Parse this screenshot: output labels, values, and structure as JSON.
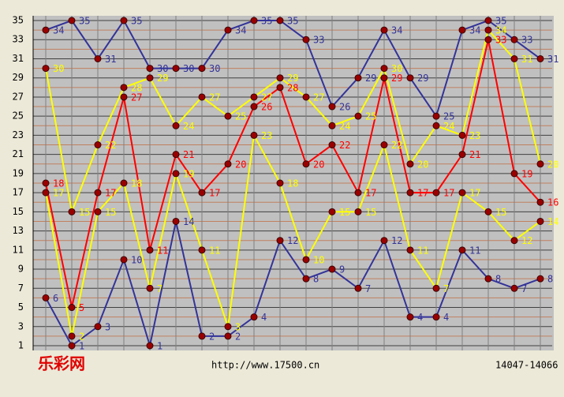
{
  "chart_data": {
    "type": "line",
    "logo": "乐彩网",
    "url": "http://www.17500.cn",
    "period": "14047-14066",
    "ylim": [
      1,
      35
    ],
    "yticks": [
      1,
      3,
      5,
      7,
      9,
      11,
      13,
      15,
      17,
      19,
      21,
      23,
      25,
      27,
      29,
      31,
      33,
      35
    ],
    "minor_yticks": [
      2,
      4,
      6,
      8,
      10,
      12,
      14,
      16,
      18,
      20,
      22,
      24,
      26,
      28,
      30,
      32,
      34
    ],
    "grid": true,
    "series": [
      {
        "color": "#333399",
        "values": [
          34,
          35,
          31,
          35,
          30,
          30,
          30,
          34,
          35,
          35,
          33,
          26,
          29,
          34,
          29,
          25,
          34,
          35,
          33,
          31
        ]
      },
      {
        "color": "#333399",
        "values": [
          6,
          1,
          3,
          10,
          1,
          14,
          2,
          2,
          4,
          12,
          8,
          9,
          7,
          12,
          4,
          4,
          11,
          8,
          7,
          8
        ]
      },
      {
        "color": "#ff0000",
        "values": [
          18,
          5,
          17,
          27,
          11,
          21,
          17,
          20,
          26,
          28,
          20,
          22,
          17,
          29,
          17,
          17,
          21,
          33,
          19,
          16
        ]
      },
      {
        "color": "#ffff00",
        "values": [
          30,
          15,
          22,
          28,
          29,
          24,
          27,
          25,
          27,
          29,
          27,
          24,
          25,
          30,
          20,
          24,
          23,
          34,
          31,
          20
        ]
      },
      {
        "color": "#ffff00",
        "values": [
          17,
          2,
          15,
          18,
          7,
          19,
          11,
          3,
          23,
          18,
          10,
          15,
          15,
          22,
          11,
          7,
          17,
          15,
          12,
          14
        ]
      }
    ]
  }
}
